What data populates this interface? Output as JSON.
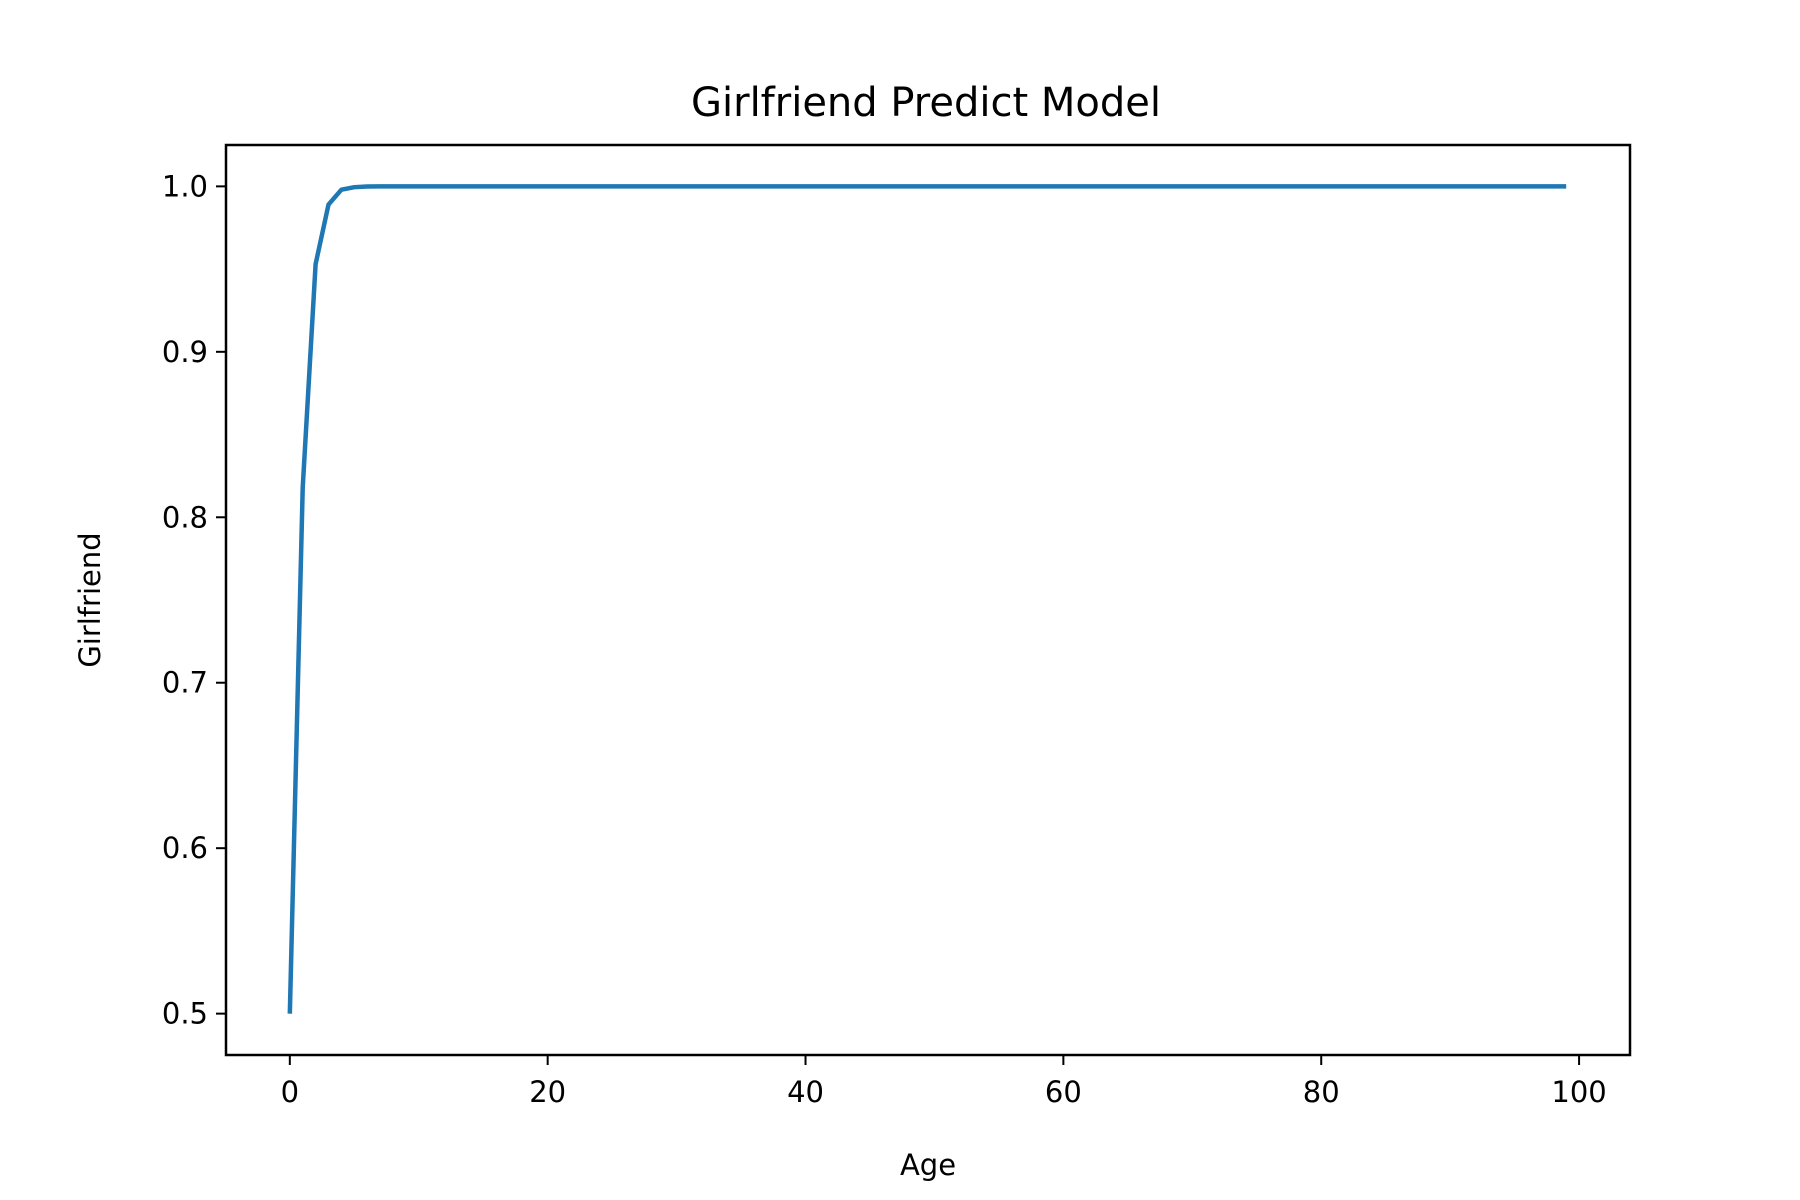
{
  "chart_data": {
    "type": "line",
    "title": "Girlfriend Predict Model",
    "xlabel": "Age",
    "ylabel": "Girlfriend",
    "xlim": [
      -4.95,
      103.95
    ],
    "ylim": [
      0.475,
      1.025
    ],
    "xticks": [
      0,
      20,
      40,
      60,
      80,
      100
    ],
    "yticks": [
      0.5,
      0.6,
      0.7,
      0.8,
      0.9,
      1.0
    ],
    "xtick_labels": [
      "0",
      "20",
      "40",
      "60",
      "80",
      "100"
    ],
    "ytick_labels": [
      "0.5",
      "0.6",
      "0.7",
      "0.8",
      "0.9",
      "1.0"
    ],
    "grid": false,
    "series": [
      {
        "color": "#1f77b4",
        "x": [
          0,
          1,
          2,
          3,
          4,
          5,
          6,
          7,
          8,
          9,
          99
        ],
        "y": [
          0.5,
          0.818,
          0.953,
          0.989,
          0.998,
          0.9995,
          0.9999,
          1.0,
          1.0,
          1.0,
          1.0
        ]
      }
    ]
  }
}
